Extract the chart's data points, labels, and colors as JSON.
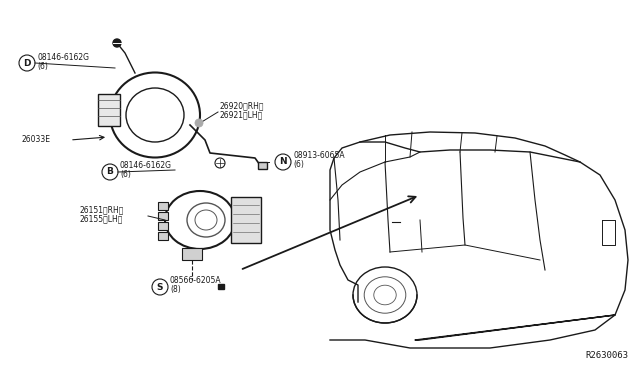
{
  "bg_color": "#ffffff",
  "fig_width": 6.4,
  "fig_height": 3.72,
  "dpi": 100,
  "ref_code": "R2630063",
  "label_D": "08146-6162G",
  "label_D2": "(6)",
  "label_B": "08146-6162G",
  "label_B2": "(6)",
  "label_N": "08913-6065A",
  "label_N2": "(6)",
  "label_S": "08566-6205A",
  "label_S2": "(8)",
  "label_26920": "26920〈RH〉",
  "label_26921": "26921〈LH〉",
  "label_26033": "26033E",
  "label_26151": "26151 〈RH〉",
  "label_26155": "26155〈LH〉"
}
